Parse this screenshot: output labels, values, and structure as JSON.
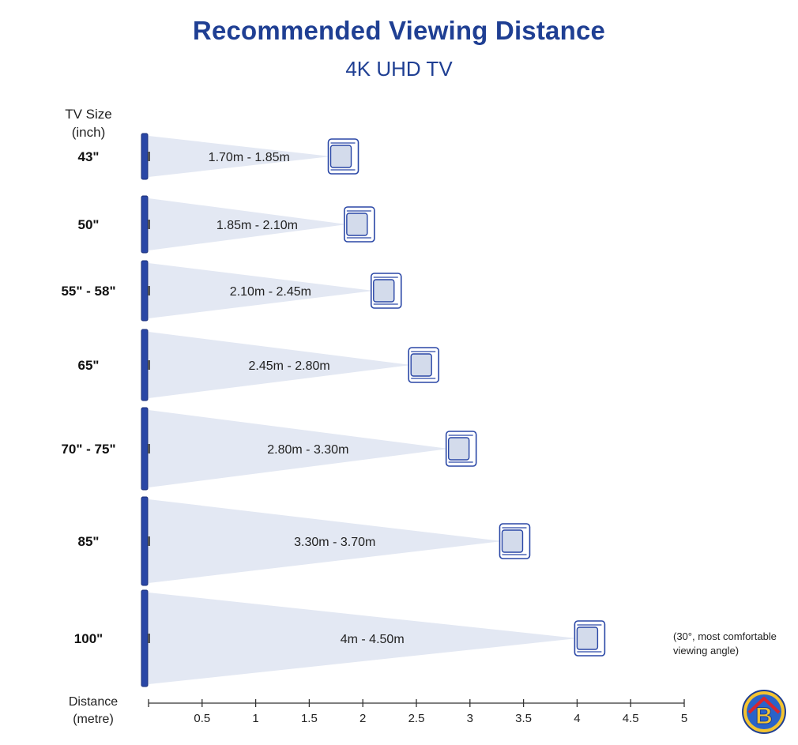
{
  "header": {
    "title": "Recommended Viewing Distance",
    "subtitle": "4K UHD TV"
  },
  "axis": {
    "y_heading_line1": "TV Size",
    "y_heading_line2": "(inch)",
    "x_heading_line1": "Distance",
    "x_heading_line2": "(metre)"
  },
  "note": {
    "line1": "(30°, most comfortable",
    "line2": "viewing angle)"
  },
  "colors": {
    "title": "#1f3f93",
    "beam": "#e3e8f3",
    "tv": "#2a47a6",
    "chair_stroke": "#2a47a6",
    "chair_fill": "#d3dbeb"
  },
  "logo": {
    "letter": "B",
    "icon": "house-logo-icon"
  },
  "chart_data": {
    "type": "range-diagram",
    "xlabel": "Distance (metre)",
    "ylabel": "TV Size (inch)",
    "xlim": [
      0,
      5
    ],
    "x_ticks": [
      "0.5",
      "1",
      "1.5",
      "2",
      "2.5",
      "3",
      "3.5",
      "4",
      "4.5",
      "5"
    ],
    "rows": [
      {
        "size": "43\"",
        "min": 1.7,
        "max": 1.85,
        "label": "1.70m - 1.85m"
      },
      {
        "size": "50\"",
        "min": 1.85,
        "max": 2.1,
        "label": "1.85m - 2.10m"
      },
      {
        "size": "55\" - 58\"",
        "min": 2.1,
        "max": 2.45,
        "label": "2.10m - 2.45m"
      },
      {
        "size": "65\"",
        "min": 2.45,
        "max": 2.8,
        "label": "2.45m - 2.80m"
      },
      {
        "size": "70\" - 75\"",
        "min": 2.8,
        "max": 3.3,
        "label": "2.80m - 3.30m"
      },
      {
        "size": "85\"",
        "min": 3.3,
        "max": 3.7,
        "label": "3.30m - 3.70m"
      },
      {
        "size": "100\"",
        "min": 4.0,
        "max": 4.5,
        "label": "4m - 4.50m"
      }
    ]
  }
}
